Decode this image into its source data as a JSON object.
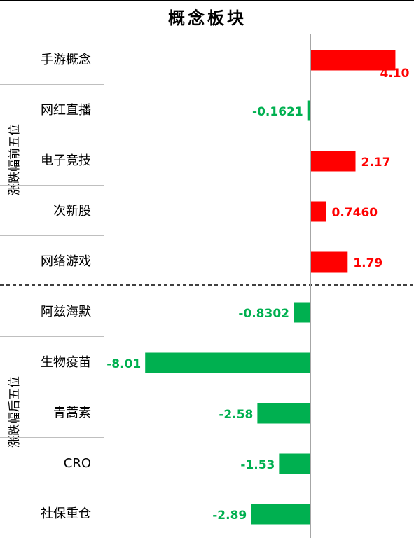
{
  "title": "概念板块",
  "colors": {
    "positive": "#ff0000",
    "negative": "#00b050"
  },
  "chart_data": {
    "type": "bar",
    "orientation": "horizontal",
    "title": "概念板块",
    "groups": [
      {
        "label": "涨跌幅前五位",
        "categories": [
          "手游概念",
          "网红直播",
          "电子竞技",
          "次新股",
          "网络游戏"
        ]
      },
      {
        "label": "涨跌幅后五位",
        "categories": [
          "阿兹海默",
          "生物疫苗",
          "青蒿素",
          "CRO",
          "社保重仓"
        ]
      }
    ],
    "categories": [
      "手游概念",
      "网红直播",
      "电子竞技",
      "次新股",
      "网络游戏",
      "阿兹海默",
      "生物疫苗",
      "青蒿素",
      "CRO",
      "社保重仓"
    ],
    "values": [
      4.1,
      -0.1621,
      2.17,
      0.746,
      1.79,
      -0.8302,
      -8.01,
      -2.58,
      -1.53,
      -2.89
    ],
    "labels": [
      "4.10",
      "-0.1621",
      "2.17",
      "0.7460",
      "1.79",
      "-0.8302",
      "-8.01",
      "-2.58",
      "-1.53",
      "-2.89"
    ],
    "grid": false,
    "legend": "none"
  }
}
